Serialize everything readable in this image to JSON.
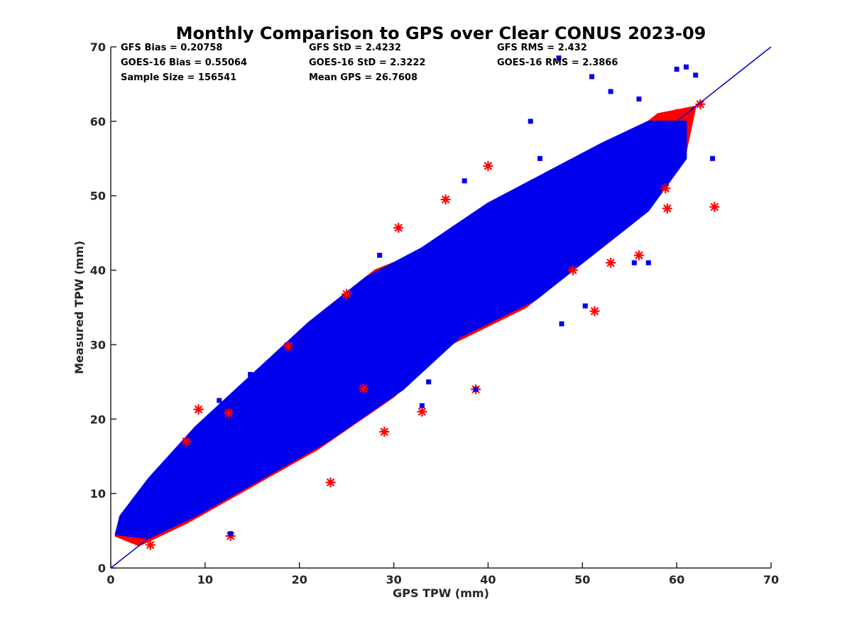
{
  "chart_data": {
    "type": "scatter",
    "title": "Monthly Comparison to GPS over Clear CONUS 2023-09",
    "xlabel": "GPS TPW (mm)",
    "ylabel": "Measured TPW (mm)",
    "xlim": [
      0,
      70
    ],
    "ylim": [
      0,
      70
    ],
    "xticks": [
      "0",
      "10",
      "20",
      "30",
      "40",
      "50",
      "60",
      "70"
    ],
    "yticks": [
      "0",
      "10",
      "20",
      "30",
      "40",
      "50",
      "60",
      "70"
    ],
    "grid": false,
    "legend": "none",
    "reference_line": {
      "x": [
        0,
        70
      ],
      "y": [
        0,
        70
      ],
      "color": "#0000cc"
    },
    "stats": [
      [
        "GFS Bias = 0.20758",
        "GFS StD = 2.4232",
        "GFS RMS = 2.432"
      ],
      [
        "GOES-16 Bias = 0.55064",
        "GOES-16 StD = 2.3222",
        "GOES-16 RMS = 2.3866"
      ],
      [
        "Sample Size = 156541",
        "Mean GPS = 26.7608",
        ""
      ]
    ],
    "series": [
      {
        "marker": "asterisk",
        "color": "#ff0000",
        "cloud": [
          [
            0.5,
            4.3
          ],
          [
            3,
            3
          ],
          [
            8,
            6
          ],
          [
            15,
            11
          ],
          [
            22,
            16
          ],
          [
            30,
            23
          ],
          [
            36,
            30
          ],
          [
            44,
            35
          ],
          [
            50,
            41
          ],
          [
            56,
            47
          ],
          [
            61,
            56
          ],
          [
            62,
            62
          ],
          [
            58,
            61
          ],
          [
            53,
            56
          ],
          [
            47,
            53
          ],
          [
            40,
            48
          ],
          [
            34,
            43
          ],
          [
            28,
            40
          ],
          [
            22,
            34
          ],
          [
            16,
            26
          ],
          [
            10,
            19
          ],
          [
            5,
            13
          ],
          [
            1,
            7
          ]
        ],
        "outliers": [
          [
            12.7,
            4.3
          ],
          [
            23.3,
            11.5
          ],
          [
            33,
            21
          ],
          [
            38.7,
            24
          ],
          [
            49,
            40
          ],
          [
            51.3,
            34.5
          ],
          [
            53,
            41
          ],
          [
            56,
            42
          ],
          [
            64,
            48.5
          ],
          [
            59,
            48.3
          ],
          [
            30.5,
            45.7
          ],
          [
            25,
            36.8
          ],
          [
            18.8,
            29.8
          ],
          [
            9.3,
            21.3
          ],
          [
            12.5,
            20.8
          ],
          [
            29,
            18.3
          ],
          [
            26.8,
            24.1
          ],
          [
            40,
            54
          ],
          [
            35.5,
            49.5
          ],
          [
            58.8,
            51
          ],
          [
            62.5,
            62.3
          ],
          [
            60,
            61
          ],
          [
            8,
            17
          ],
          [
            4.2,
            3.1
          ]
        ]
      },
      {
        "marker": "square",
        "color": "#0000ee",
        "cloud": [
          [
            0.5,
            4.5
          ],
          [
            4,
            4
          ],
          [
            9,
            7
          ],
          [
            16,
            12
          ],
          [
            23,
            17
          ],
          [
            31,
            24
          ],
          [
            37,
            31
          ],
          [
            45,
            36
          ],
          [
            51,
            42
          ],
          [
            57,
            48
          ],
          [
            61,
            55
          ],
          [
            61,
            60
          ],
          [
            57,
            60
          ],
          [
            52,
            57
          ],
          [
            46,
            53
          ],
          [
            40,
            49
          ],
          [
            33,
            43
          ],
          [
            27,
            39
          ],
          [
            21,
            33
          ],
          [
            15,
            26
          ],
          [
            9,
            19
          ],
          [
            4,
            12
          ],
          [
            1,
            7
          ]
        ],
        "outliers": [
          [
            12.7,
            4.6
          ],
          [
            38.7,
            24
          ],
          [
            47.8,
            32.8
          ],
          [
            50.3,
            35.2
          ],
          [
            51,
            66
          ],
          [
            47.5,
            68.5
          ],
          [
            53,
            64
          ],
          [
            56,
            63
          ],
          [
            60,
            67
          ],
          [
            61,
            67.3
          ],
          [
            62,
            66.2
          ],
          [
            63.8,
            55
          ],
          [
            44.5,
            60
          ],
          [
            45.5,
            55
          ],
          [
            37.5,
            52
          ],
          [
            28.5,
            42
          ],
          [
            23.5,
            32.5
          ],
          [
            14.8,
            26
          ],
          [
            11.5,
            22.5
          ],
          [
            55.5,
            41
          ],
          [
            33,
            21.8
          ],
          [
            33.7,
            25
          ],
          [
            41.5,
            37
          ],
          [
            57,
            41
          ]
        ]
      }
    ]
  }
}
